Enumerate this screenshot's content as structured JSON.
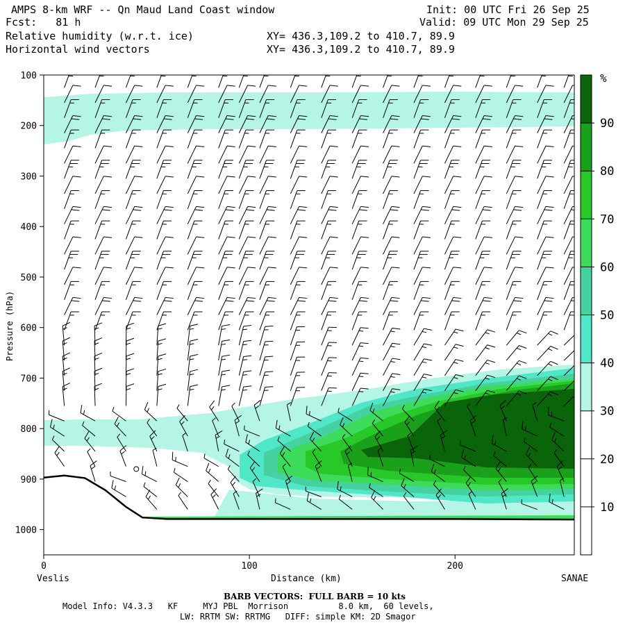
{
  "header": {
    "title": "AMPS 8-km WRF -- Qn Maud Land Coast window",
    "fcst": "Fcst:   81 h",
    "init": "Init: 00 UTC Fri 26 Sep 25",
    "valid": "Valid: 09 UTC Mon 29 Sep 25",
    "field1": "Relative humidity (w.r.t. ice)",
    "field2": "Horizontal wind vectors",
    "xy1": "XY= 436.3,109.2 to 410.7, 89.9",
    "xy2": "XY= 436.3,109.2 to 410.7, 89.9"
  },
  "footer": {
    "barb": "BARB VECTORS:  FULL BARB = 10 kts",
    "model1": "Model Info: V4.3.3   KF     MYJ PBL  Morrison          8.0 km,  60 levels,",
    "model2": "LW: RRTM SW: RRTMG   DIFF: simple KM: 2D Smagor"
  },
  "chart_data": {
    "type": "heatmap",
    "title": "Relative humidity (w.r.t. ice) cross-section",
    "xlabel": "Distance (km)",
    "ylabel": "Pressure (hPa)",
    "xlim": [
      0,
      258
    ],
    "ylim": [
      1050,
      100
    ],
    "x_ticks": [
      0,
      100,
      200
    ],
    "y_ticks": [
      100,
      200,
      300,
      400,
      500,
      600,
      700,
      800,
      900,
      1000
    ],
    "x_start_label": "Veslis",
    "x_end_label": "SANAE",
    "colorbar": {
      "unit": "%",
      "levels": [
        10,
        20,
        30,
        40,
        50,
        60,
        70,
        80,
        90
      ],
      "colors": [
        "#ffffff",
        "#ffffff",
        "#ffffff",
        "#b4f5e6",
        "#50e6c8",
        "#46d2a0",
        "#3cdc5a",
        "#28c828",
        "#1aa01a",
        "#0a640a"
      ]
    },
    "terrain_hPa": [
      [
        0,
        897
      ],
      [
        10,
        893
      ],
      [
        20,
        898
      ],
      [
        30,
        922
      ],
      [
        40,
        955
      ],
      [
        48,
        976
      ],
      [
        60,
        979
      ],
      [
        100,
        979
      ],
      [
        150,
        979
      ],
      [
        200,
        979
      ],
      [
        258,
        980
      ]
    ],
    "regions": [
      {
        "level": 30,
        "desc": "upper moist layer",
        "p_top": 135,
        "p_bottom": 210
      },
      {
        "level": 30,
        "desc": "lower moist layer",
        "p_top": 680,
        "p_bottom": 960
      },
      {
        "level": 40,
        "desc": "moist core",
        "p_top": 700,
        "p_bottom": 900
      },
      {
        "level": 90,
        "desc": "saturated core",
        "p_top": 720,
        "p_bottom": 870
      }
    ],
    "barb_columns_km": [
      10,
      25,
      40,
      55,
      70,
      85,
      95,
      105,
      120,
      135,
      150,
      165,
      180,
      195,
      210,
      225,
      240,
      253
    ],
    "barb_levels_hPa": [
      125,
      155,
      185,
      215,
      245,
      275,
      305,
      335,
      365,
      395,
      425,
      455,
      485,
      515,
      545,
      575,
      605,
      635,
      665,
      695,
      725,
      755,
      785,
      815,
      845,
      875,
      905,
      935,
      960
    ],
    "barb_full_kts": 10
  }
}
